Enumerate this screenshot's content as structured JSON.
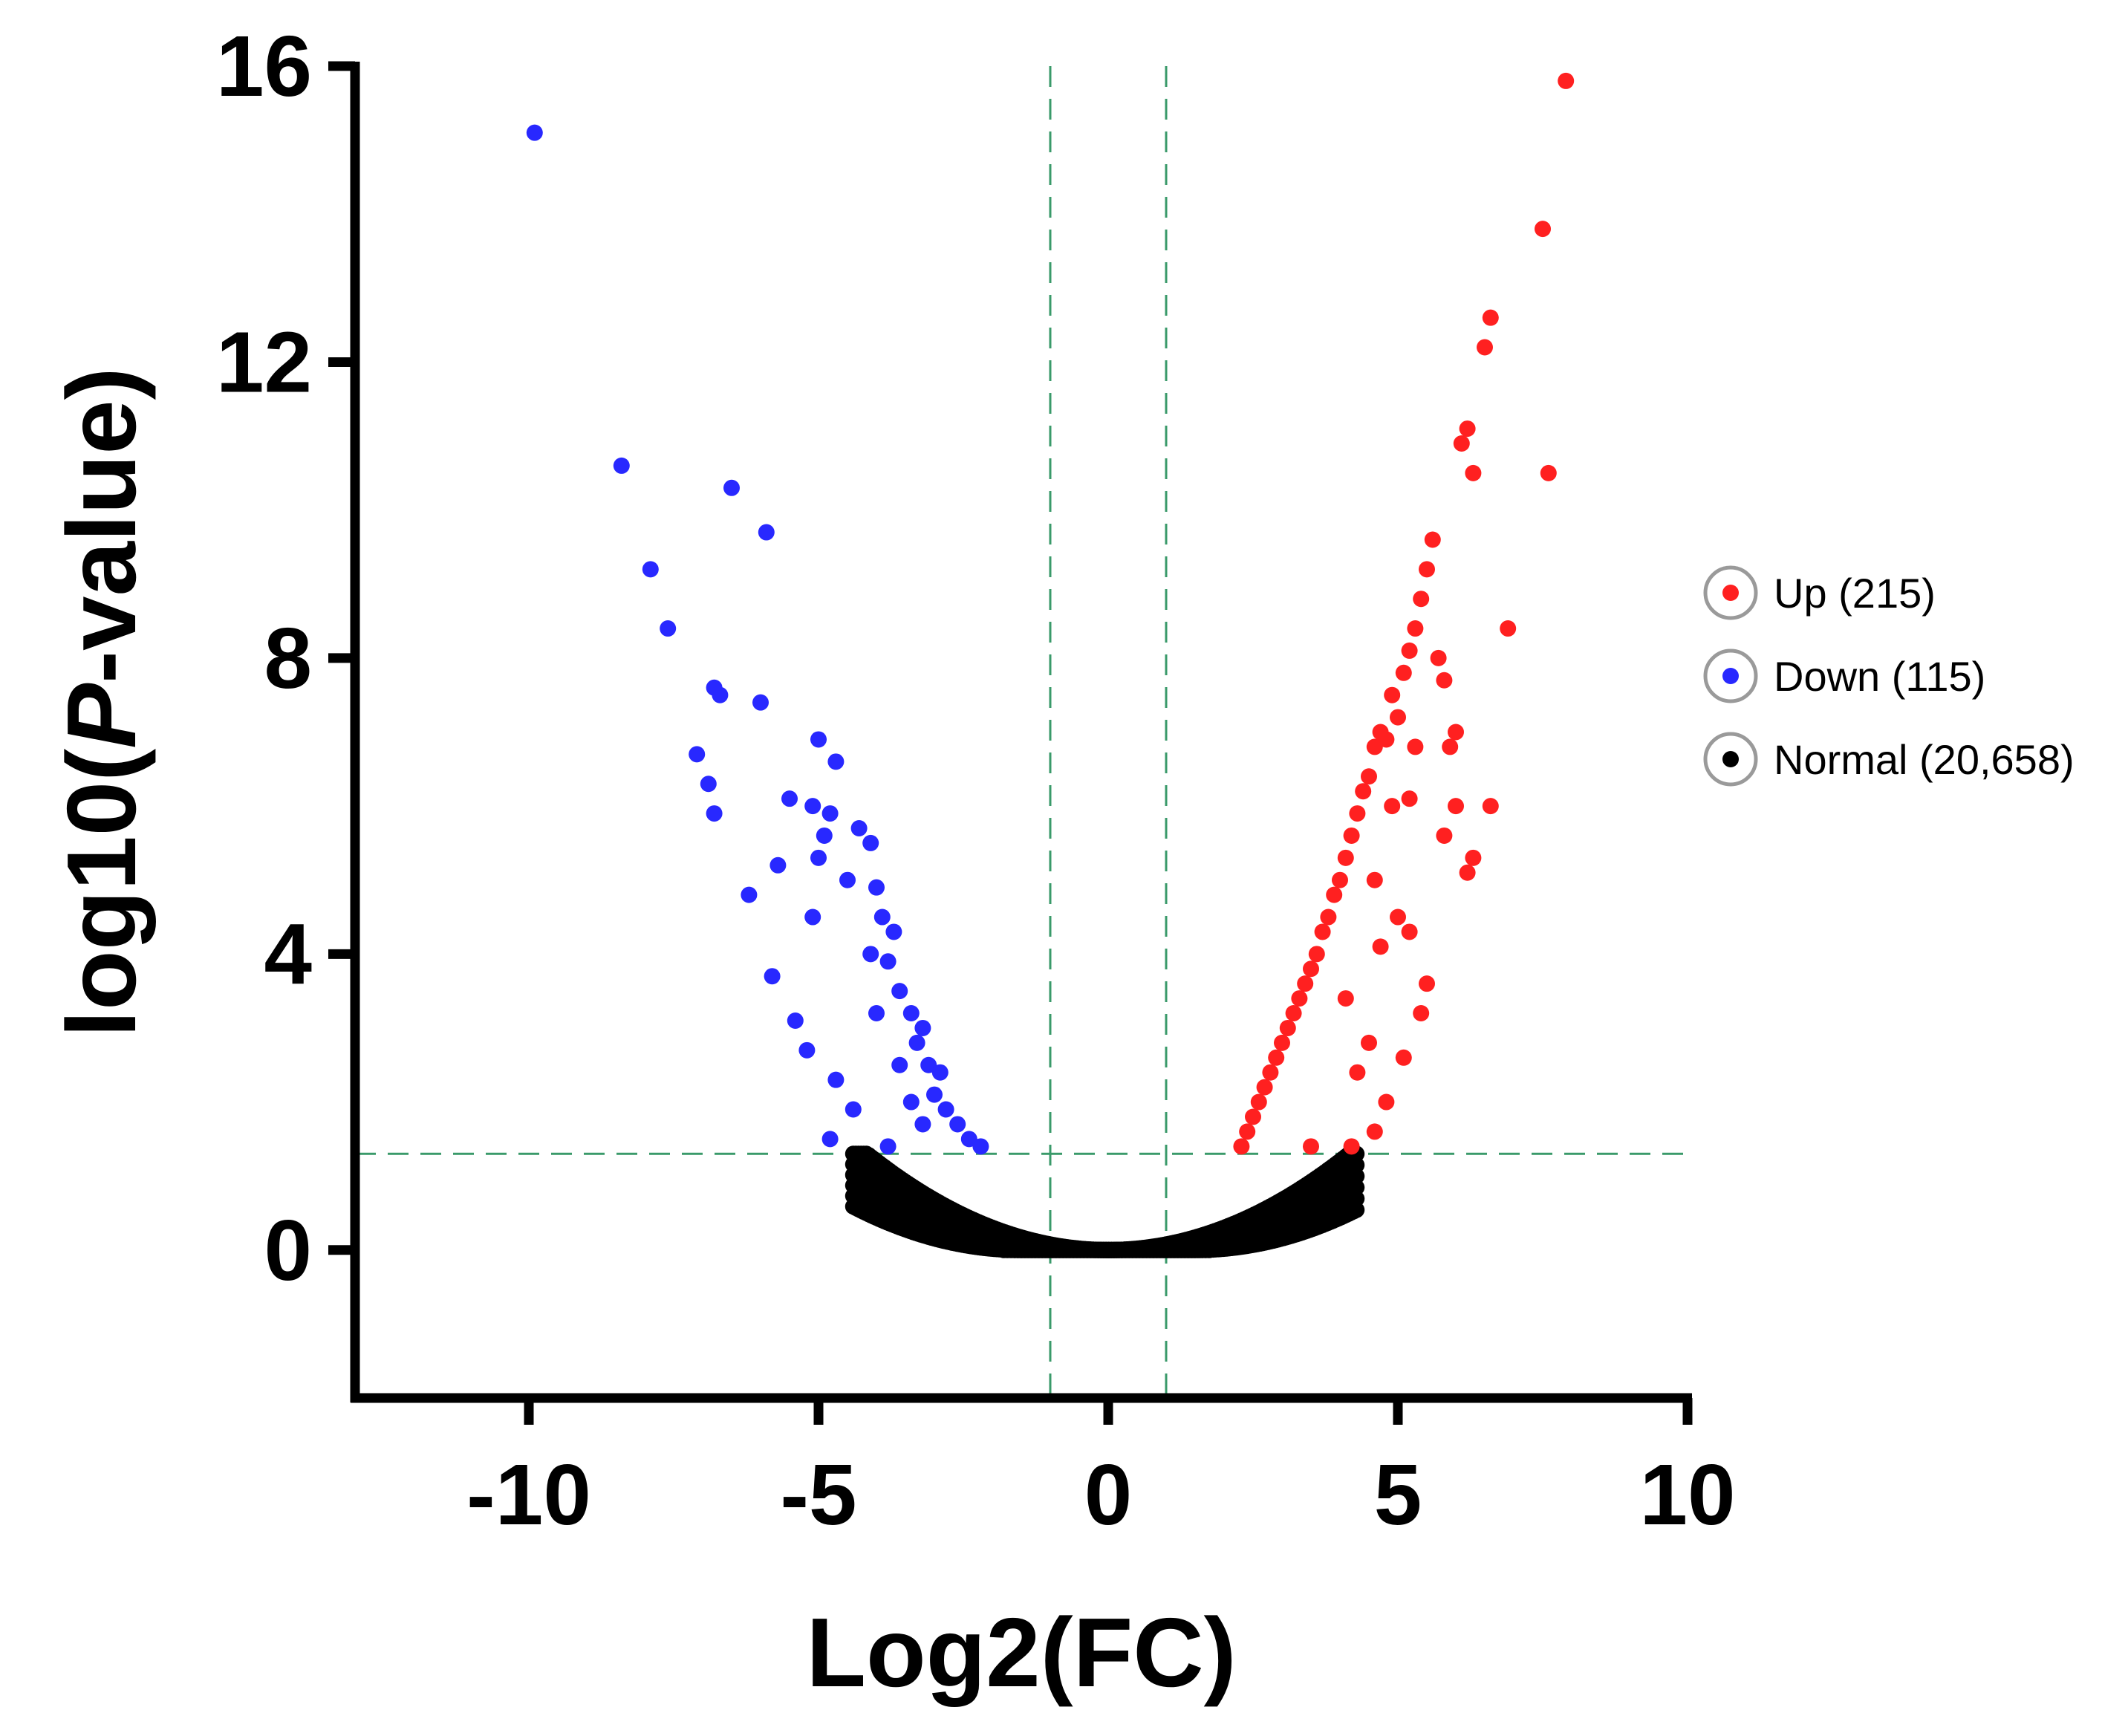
{
  "chart_data": {
    "type": "scatter",
    "title": "",
    "xlabel": "Log2(FC)",
    "ylabel_parts": {
      "before": "log10(",
      "italic": "P",
      "after": "-value)"
    },
    "xlim": [
      -13,
      10
    ],
    "ylim": [
      -2,
      16
    ],
    "xticks": [
      -10,
      -5,
      0,
      5,
      10
    ],
    "yticks": [
      0,
      4,
      8,
      12,
      16
    ],
    "thresholds": {
      "fc_lines": [
        -1,
        1
      ],
      "pvalue_line": 1.3
    },
    "legend_position": "right",
    "colors": {
      "up": "#ff2020",
      "down": "#2828ff",
      "normal": "#000000",
      "threshold": "#3a9a6a"
    },
    "series": [
      {
        "key": "up",
        "name": "Up (215)",
        "points": [
          [
            7.9,
            15.8
          ],
          [
            7.5,
            13.8
          ],
          [
            6.6,
            12.6
          ],
          [
            6.5,
            12.2
          ],
          [
            6.2,
            11.1
          ],
          [
            6.1,
            10.9
          ],
          [
            6.3,
            10.5
          ],
          [
            7.6,
            10.5
          ],
          [
            5.6,
            9.6
          ],
          [
            5.5,
            9.2
          ],
          [
            5.4,
            8.8
          ],
          [
            5.3,
            8.4
          ],
          [
            6.9,
            8.4
          ],
          [
            5.2,
            8.1
          ],
          [
            5.7,
            8.0
          ],
          [
            5.1,
            7.8
          ],
          [
            5.8,
            7.7
          ],
          [
            4.9,
            7.5
          ],
          [
            5.0,
            7.2
          ],
          [
            4.7,
            7.0
          ],
          [
            4.8,
            6.9
          ],
          [
            6.0,
            7.0
          ],
          [
            5.9,
            6.8
          ],
          [
            4.6,
            6.8
          ],
          [
            5.3,
            6.8
          ],
          [
            4.5,
            6.4
          ],
          [
            4.4,
            6.2
          ],
          [
            4.9,
            6.0
          ],
          [
            5.2,
            6.1
          ],
          [
            4.3,
            5.9
          ],
          [
            6.0,
            6.0
          ],
          [
            6.6,
            6.0
          ],
          [
            4.2,
            5.6
          ],
          [
            5.8,
            5.6
          ],
          [
            4.1,
            5.3
          ],
          [
            6.3,
            5.3
          ],
          [
            4.0,
            5.0
          ],
          [
            4.6,
            5.0
          ],
          [
            6.2,
            5.1
          ],
          [
            3.9,
            4.8
          ],
          [
            3.8,
            4.5
          ],
          [
            5.0,
            4.5
          ],
          [
            3.7,
            4.3
          ],
          [
            5.2,
            4.3
          ],
          [
            4.7,
            4.1
          ],
          [
            3.6,
            4.0
          ],
          [
            3.5,
            3.8
          ],
          [
            3.4,
            3.6
          ],
          [
            5.5,
            3.6
          ],
          [
            3.3,
            3.4
          ],
          [
            4.1,
            3.4
          ],
          [
            3.2,
            3.2
          ],
          [
            5.4,
            3.2
          ],
          [
            3.1,
            3.0
          ],
          [
            3.0,
            2.8
          ],
          [
            4.5,
            2.8
          ],
          [
            2.9,
            2.6
          ],
          [
            5.1,
            2.6
          ],
          [
            2.8,
            2.4
          ],
          [
            4.3,
            2.4
          ],
          [
            2.7,
            2.2
          ],
          [
            2.6,
            2.0
          ],
          [
            4.8,
            2.0
          ],
          [
            2.5,
            1.8
          ],
          [
            2.4,
            1.6
          ],
          [
            4.6,
            1.6
          ],
          [
            2.3,
            1.4
          ],
          [
            3.5,
            1.4
          ],
          [
            4.2,
            1.4
          ]
        ]
      },
      {
        "key": "down",
        "name": "Down (115)",
        "points": [
          [
            -9.9,
            15.1
          ],
          [
            -8.4,
            10.6
          ],
          [
            -6.5,
            10.3
          ],
          [
            -5.9,
            9.7
          ],
          [
            -7.9,
            9.2
          ],
          [
            -7.6,
            8.4
          ],
          [
            -6.8,
            7.6
          ],
          [
            -6.7,
            7.5
          ],
          [
            -6.0,
            7.4
          ],
          [
            -5.0,
            6.9
          ],
          [
            -4.7,
            6.6
          ],
          [
            -7.1,
            6.7
          ],
          [
            -6.9,
            6.3
          ],
          [
            -5.5,
            6.1
          ],
          [
            -6.8,
            5.9
          ],
          [
            -5.1,
            6.0
          ],
          [
            -4.8,
            5.9
          ],
          [
            -4.3,
            5.7
          ],
          [
            -4.9,
            5.6
          ],
          [
            -4.1,
            5.5
          ],
          [
            -5.0,
            5.3
          ],
          [
            -5.7,
            5.2
          ],
          [
            -4.5,
            5.0
          ],
          [
            -4.0,
            4.9
          ],
          [
            -6.2,
            4.8
          ],
          [
            -5.1,
            4.5
          ],
          [
            -3.9,
            4.5
          ],
          [
            -3.7,
            4.3
          ],
          [
            -4.1,
            4.0
          ],
          [
            -3.8,
            3.9
          ],
          [
            -5.8,
            3.7
          ],
          [
            -3.6,
            3.5
          ],
          [
            -4.0,
            3.2
          ],
          [
            -3.4,
            3.2
          ],
          [
            -5.4,
            3.1
          ],
          [
            -3.2,
            3.0
          ],
          [
            -3.3,
            2.8
          ],
          [
            -5.2,
            2.7
          ],
          [
            -3.1,
            2.5
          ],
          [
            -3.6,
            2.5
          ],
          [
            -2.9,
            2.4
          ],
          [
            -4.7,
            2.3
          ],
          [
            -3.0,
            2.1
          ],
          [
            -3.4,
            2.0
          ],
          [
            -2.8,
            1.9
          ],
          [
            -4.4,
            1.9
          ],
          [
            -2.6,
            1.7
          ],
          [
            -3.2,
            1.7
          ],
          [
            -2.4,
            1.5
          ],
          [
            -4.8,
            1.5
          ],
          [
            -3.8,
            1.4
          ],
          [
            -2.2,
            1.4
          ]
        ]
      },
      {
        "key": "normal",
        "name": "Normal (20,658)",
        "points": []
      }
    ]
  }
}
